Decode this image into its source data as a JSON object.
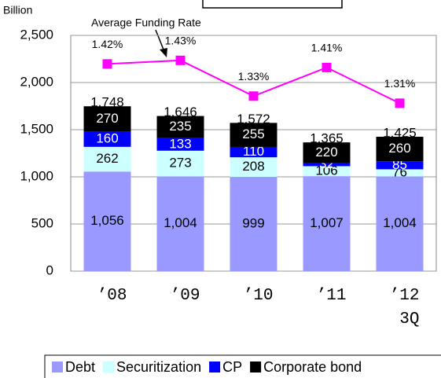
{
  "chart_data": {
    "type": "stacked_bar_line",
    "y_axis_label": "Billion",
    "annotation": "Average Funding Rate",
    "categories": [
      "’08",
      "’09",
      "’10",
      "’11",
      "’12\n3Q"
    ],
    "ylim": [
      0,
      2500
    ],
    "yticks": [
      0,
      500,
      {
        "value": 1000,
        "label": "1,000"
      },
      {
        "value": 1500,
        "label": "1,500"
      },
      {
        "value": 2000,
        "label": "2,000"
      },
      {
        "value": 2500,
        "label": "2,500"
      }
    ],
    "y2lim": [
      0.84,
      1.5
    ],
    "grid": true,
    "series": [
      {
        "name": "Debt",
        "color": "#9999ff",
        "label_color": "#000000",
        "values": [
          1056,
          1004,
          999,
          1007,
          1004
        ],
        "value_labels": [
          "1,056",
          "1,004",
          "999",
          "1,007",
          "1,004"
        ]
      },
      {
        "name": "Securitization",
        "color": "#ccffff",
        "label_color": "#000000",
        "values": [
          262,
          273,
          208,
          106,
          76
        ]
      },
      {
        "name": "CP",
        "color": "#0000ff",
        "label_color": "#ffffff",
        "values": [
          160,
          133,
          110,
          32,
          85
        ]
      },
      {
        "name": "Corporate bond",
        "color": "#000000",
        "label_color": "#ffffff",
        "values": [
          270,
          235,
          255,
          220,
          260
        ]
      },
      {
        "name": "Average Funding Rate",
        "type": "line",
        "axis": "y2",
        "color": "#ff00ff",
        "values": [
          1.42,
          1.43,
          1.33,
          1.41,
          1.31
        ],
        "value_labels": [
          "1.42%",
          "1.43%",
          "1.33%",
          "1.41%",
          "1.31%"
        ]
      }
    ],
    "totals": [
      1748,
      1646,
      1572,
      1365,
      1425
    ],
    "total_labels": [
      "1,748",
      "1,646",
      "1,572",
      "1,365",
      "1,425"
    ]
  }
}
